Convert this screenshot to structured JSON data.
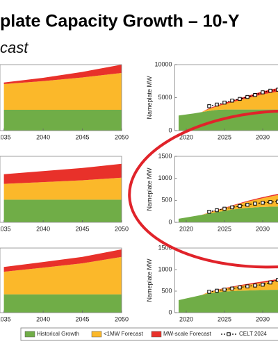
{
  "header": {
    "title": "plate Capacity Growth – 10-Y",
    "subtitle": "cast"
  },
  "chart_data": [
    {
      "type": "area",
      "stacked": true,
      "x": [
        2035,
        2040,
        2045,
        2050
      ],
      "xlim": [
        2034.5,
        2050
      ],
      "xticks": [
        2035,
        2040,
        2045,
        2050
      ],
      "ylim": [
        0,
        10000
      ],
      "series": [
        {
          "color": "#70ad47",
          "values": [
            3160,
            3160,
            3160,
            3160
          ]
        },
        {
          "color": "#fbb82a",
          "values": [
            3890,
            4340,
            4890,
            5580
          ]
        },
        {
          "color": "#e8312a",
          "values": [
            250,
            500,
            850,
            1260
          ]
        }
      ]
    },
    {
      "type": "area",
      "stacked": true,
      "x": [
        2019,
        2020,
        2021,
        2022,
        2023,
        2024,
        2025,
        2026,
        2027,
        2028,
        2029,
        2030,
        2031,
        2032
      ],
      "xlim": [
        2018.5,
        2034
      ],
      "xticks": [
        2020,
        2025,
        2030
      ],
      "ylim": [
        0,
        10000
      ],
      "yticks": [
        0,
        5000,
        10000
      ],
      "y_label": "Nameplate MW",
      "series": [
        {
          "name": "Historical Growth",
          "color": "#70ad47",
          "values": [
            2300,
            2450,
            2600,
            2800,
            3000,
            3150,
            3200,
            3200,
            3200,
            3200,
            3200,
            3200,
            3200,
            3200
          ]
        },
        {
          "name": "<1MW Forecast",
          "color": "#fbb82a",
          "values": [
            0,
            0,
            0,
            0,
            300,
            500,
            800,
            1100,
            1400,
            1700,
            2000,
            2300,
            2500,
            2700
          ]
        },
        {
          "name": "MW-scale Forecast",
          "color": "#e8312a",
          "values": [
            0,
            0,
            0,
            0,
            100,
            150,
            200,
            250,
            300,
            350,
            400,
            450,
            500,
            550
          ]
        },
        {
          "name": "CELT 2024",
          "type": "line",
          "color": "#000000",
          "x": [
            2023,
            2024,
            2025,
            2026,
            2027,
            2028,
            2029,
            2030,
            2031,
            2032
          ],
          "values": [
            3700,
            3950,
            4250,
            4550,
            4800,
            5100,
            5400,
            5800,
            6050,
            6200
          ]
        }
      ]
    },
    {
      "type": "area",
      "stacked": true,
      "x": [
        2035,
        2040,
        2045,
        2050
      ],
      "xlim": [
        2034.5,
        2050
      ],
      "xticks": [
        2035,
        2040,
        2045,
        2050
      ],
      "ylim": [
        0,
        1500
      ],
      "series": [
        {
          "color": "#70ad47",
          "values": [
            515,
            515,
            515,
            515
          ]
        },
        {
          "color": "#fbb82a",
          "values": [
            360,
            400,
            440,
            500
          ]
        },
        {
          "color": "#e8312a",
          "values": [
            220,
            250,
            280,
            315
          ]
        }
      ]
    },
    {
      "type": "area",
      "stacked": true,
      "x": [
        2019,
        2020,
        2021,
        2022,
        2023,
        2024,
        2025,
        2026,
        2027,
        2028,
        2029,
        2030,
        2031,
        2032
      ],
      "xlim": [
        2018.5,
        2034
      ],
      "xticks": [
        2020,
        2025,
        2030
      ],
      "ylim": [
        0,
        1500
      ],
      "yticks": [
        0,
        500,
        1000,
        1500
      ],
      "y_label": "Nameplate MW",
      "series": [
        {
          "color": "#70ad47",
          "values": [
            80,
            110,
            140,
            170,
            200,
            230,
            260,
            290,
            310,
            330,
            340,
            350,
            355,
            360
          ]
        },
        {
          "color": "#fbb82a",
          "values": [
            0,
            0,
            0,
            0,
            20,
            40,
            60,
            80,
            110,
            140,
            170,
            200,
            230,
            260
          ]
        },
        {
          "color": "#e8312a",
          "values": [
            0,
            0,
            0,
            0,
            5,
            8,
            10,
            12,
            15,
            18,
            20,
            22,
            25,
            28
          ]
        },
        {
          "type": "line",
          "color": "#000000",
          "x": [
            2023,
            2024,
            2025,
            2026,
            2027,
            2028,
            2029,
            2030,
            2031,
            2032
          ],
          "values": [
            240,
            275,
            310,
            340,
            370,
            400,
            425,
            445,
            460,
            470
          ]
        }
      ]
    },
    {
      "type": "area",
      "stacked": true,
      "x": [
        2035,
        2040,
        2045,
        2050
      ],
      "xlim": [
        2034.5,
        2050
      ],
      "xticks": [
        2035,
        2040,
        2045,
        2050
      ],
      "ylim": [
        0,
        1500
      ],
      "series": [
        {
          "color": "#70ad47",
          "values": [
            425,
            425,
            425,
            425
          ]
        },
        {
          "color": "#fbb82a",
          "values": [
            525,
            620,
            720,
            870
          ]
        },
        {
          "color": "#e8312a",
          "values": [
            110,
            130,
            150,
            175
          ]
        }
      ]
    },
    {
      "type": "area",
      "stacked": true,
      "x": [
        2019,
        2020,
        2021,
        2022,
        2023,
        2024,
        2025,
        2026,
        2027,
        2028,
        2029,
        2030,
        2031,
        2032
      ],
      "xlim": [
        2018.5,
        2034
      ],
      "xticks": [
        2020,
        2025,
        2030
      ],
      "ylim": [
        0,
        1500
      ],
      "yticks": [
        0,
        500,
        1000,
        1500
      ],
      "y_label": "Nameplate MW",
      "series": [
        {
          "color": "#70ad47",
          "values": [
            290,
            330,
            370,
            410,
            450,
            470,
            490,
            500,
            510,
            515,
            520,
            525,
            530,
            530
          ]
        },
        {
          "color": "#fbb82a",
          "values": [
            0,
            0,
            0,
            0,
            30,
            50,
            70,
            90,
            110,
            130,
            150,
            170,
            190,
            210
          ]
        },
        {
          "color": "#e8312a",
          "values": [
            0,
            0,
            0,
            0,
            5,
            8,
            12,
            15,
            18,
            22,
            26,
            30,
            34,
            38
          ]
        },
        {
          "type": "line",
          "color": "#000000",
          "x": [
            2023,
            2024,
            2025,
            2026,
            2027,
            2028,
            2029,
            2030,
            2031,
            2032
          ],
          "values": [
            485,
            510,
            535,
            560,
            585,
            610,
            630,
            650,
            700,
            760
          ]
        }
      ]
    }
  ]
}
